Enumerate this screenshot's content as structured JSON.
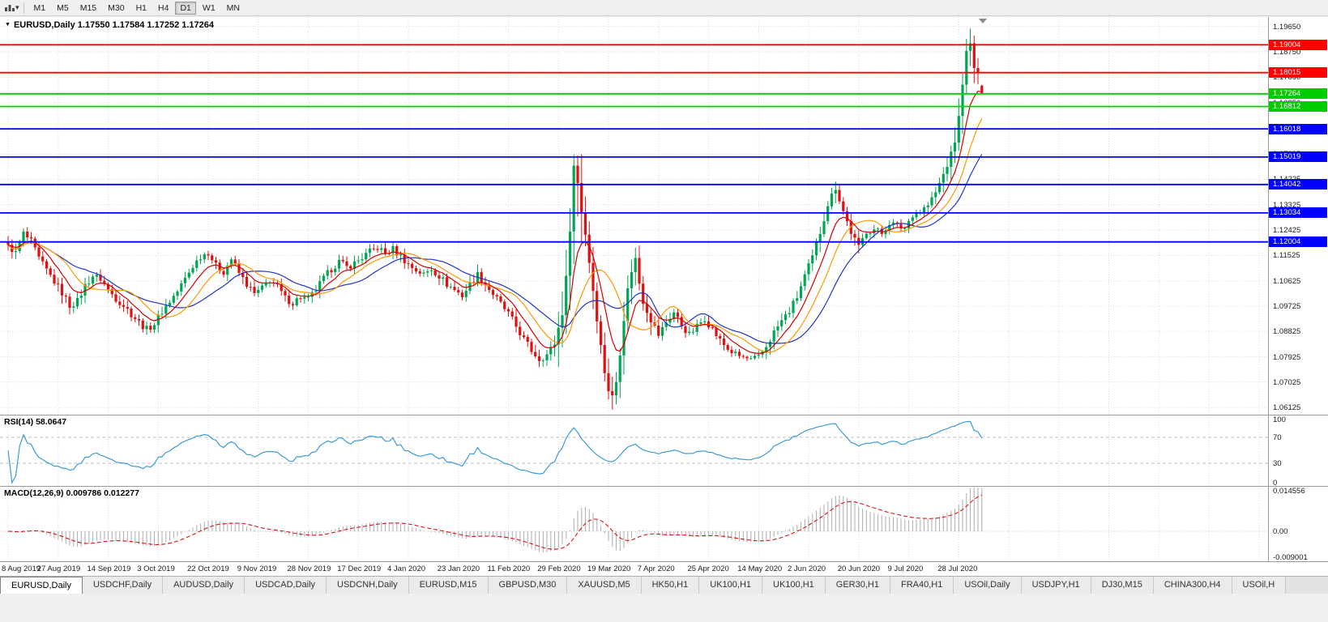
{
  "toolbar": {
    "timeframes": [
      "M1",
      "M5",
      "M15",
      "M30",
      "H1",
      "H4",
      "D1",
      "W1",
      "MN"
    ],
    "active_timeframe": "D1"
  },
  "main_chart": {
    "expander_icon": "▼",
    "symbol": "EURUSD,Daily",
    "ohlc": "1.17550 1.17584 1.17252 1.17264",
    "price_axis_labels": [
      "1.19650",
      "1.18750",
      "1.17850",
      "1.16950",
      "1.16050",
      "1.15125",
      "1.14225",
      "1.13325",
      "1.12425",
      "1.11525",
      "1.10625",
      "1.09725",
      "1.08825",
      "1.07925",
      "1.07025",
      "1.06125"
    ],
    "levels": [
      {
        "price": 1.19004,
        "label": "1.19004",
        "color": "#FF0000"
      },
      {
        "price": 1.18015,
        "label": "1.18015",
        "color": "#FF0000"
      },
      {
        "price": 1.17264,
        "label": "1.17264",
        "color": "#00CC00"
      },
      {
        "price": 1.16812,
        "label": "1.16812",
        "color": "#00CC00"
      },
      {
        "price": 1.16018,
        "label": "1.16018",
        "color": "#0000FF"
      },
      {
        "price": 1.15019,
        "label": "1.15019",
        "color": "#0000FF"
      },
      {
        "price": 1.14042,
        "label": "1.14042",
        "color": "#0000FF"
      },
      {
        "price": 1.13034,
        "label": "1.13034",
        "color": "#0000FF"
      },
      {
        "price": 1.12004,
        "label": "1.12004",
        "color": "#0000FF"
      }
    ]
  },
  "rsi": {
    "label": "RSI(14) 58.0647",
    "value": 58.0647,
    "axis_labels": [
      {
        "value": 100,
        "label": "100"
      },
      {
        "value": 70,
        "label": "70"
      },
      {
        "value": 30,
        "label": "30"
      },
      {
        "value": 0,
        "label": "0"
      }
    ],
    "level_lines": [
      70,
      30
    ]
  },
  "macd": {
    "label": "MACD(12,26,9) 0.009786 0.012277",
    "values": [
      0.009786,
      0.012277
    ],
    "axis_labels": [
      {
        "value": 0.014556,
        "label": "0.014556"
      },
      {
        "value": 0,
        "label": "0.00"
      },
      {
        "value": -0.009001,
        "label": "-0.009001"
      }
    ]
  },
  "date_axis": [
    "8 Aug 2019",
    "27 Aug 2019",
    "14 Sep 2019",
    "3 Oct 2019",
    "22 Oct 2019",
    "9 Nov 2019",
    "28 Nov 2019",
    "17 Dec 2019",
    "4 Jan 2020",
    "23 Jan 2020",
    "11 Feb 2020",
    "29 Feb 2020",
    "19 Mar 2020",
    "7 Apr 2020",
    "25 Apr 2020",
    "14 May 2020",
    "2 Jun 2020",
    "20 Jun 2020",
    "9 Jul 2020",
    "28 Jul 2020"
  ],
  "tabs": [
    "EURUSD,Daily",
    "USDCHF,Daily",
    "AUDUSD,Daily",
    "USDCAD,Daily",
    "USDCNH,Daily",
    "EURUSD,M15",
    "GBPUSD,M30",
    "XAUUSD,M5",
    "HK50,H1",
    "UK100,H1",
    "UK100,H1",
    "GER30,H1",
    "FRA40,H1",
    "USOil,Daily",
    "USDJPY,H1",
    "DJ30,M15",
    "CHINA300,H4",
    "USOil,H"
  ],
  "active_tab": "EURUSD,Daily",
  "chart_data": {
    "type": "candlestick",
    "symbol": "EURUSD",
    "timeframe": "Daily",
    "bars": 254,
    "bar_spacing_px": 4.75,
    "price_min": 1.0587,
    "price_max": 1.1999,
    "close_anchors": [
      [
        0,
        1.119
      ],
      [
        2,
        1.116
      ],
      [
        4,
        1.123
      ],
      [
        6,
        1.12
      ],
      [
        8,
        1.114
      ],
      [
        10,
        1.11
      ],
      [
        12,
        1.106
      ],
      [
        14,
        1.102
      ],
      [
        16,
        1.0975
      ],
      [
        18,
        1.099
      ],
      [
        20,
        1.1045
      ],
      [
        22,
        1.108
      ],
      [
        24,
        1.107
      ],
      [
        26,
        1.103
      ],
      [
        28,
        1.1
      ],
      [
        30,
        1.0975
      ],
      [
        32,
        1.0945
      ],
      [
        34,
        1.0915
      ],
      [
        36,
        1.089
      ],
      [
        38,
        1.091
      ],
      [
        40,
        1.0955
      ],
      [
        42,
        1.099
      ],
      [
        44,
        1.1025
      ],
      [
        46,
        1.107
      ],
      [
        48,
        1.1115
      ],
      [
        50,
        1.115
      ],
      [
        52,
        1.1165
      ],
      [
        54,
        1.1115
      ],
      [
        56,
        1.1095
      ],
      [
        58,
        1.114
      ],
      [
        60,
        1.109
      ],
      [
        62,
        1.105
      ],
      [
        64,
        1.1015
      ],
      [
        66,
        1.1035
      ],
      [
        68,
        1.1065
      ],
      [
        70,
        1.104
      ],
      [
        72,
        1.1
      ],
      [
        74,
        1.0985
      ],
      [
        76,
        1.1005
      ],
      [
        78,
        1.0995
      ],
      [
        80,
        1.103
      ],
      [
        82,
        1.107
      ],
      [
        84,
        1.1105
      ],
      [
        86,
        1.113
      ],
      [
        88,
        1.111
      ],
      [
        90,
        1.1125
      ],
      [
        92,
        1.1145
      ],
      [
        94,
        1.1165
      ],
      [
        96,
        1.118
      ],
      [
        98,
        1.116
      ],
      [
        100,
        1.1175
      ],
      [
        102,
        1.115
      ],
      [
        104,
        1.112
      ],
      [
        106,
        1.11
      ],
      [
        108,
        1.1085
      ],
      [
        110,
        1.1105
      ],
      [
        112,
        1.108
      ],
      [
        114,
        1.105
      ],
      [
        116,
        1.103
      ],
      [
        118,
        1.101
      ],
      [
        120,
        1.105
      ],
      [
        122,
        1.1085
      ],
      [
        124,
        1.105
      ],
      [
        126,
        1.1015
      ],
      [
        128,
        1.098
      ],
      [
        130,
        1.0945
      ],
      [
        132,
        1.09
      ],
      [
        134,
        1.0855
      ],
      [
        136,
        1.0815
      ],
      [
        138,
        1.0785
      ],
      [
        140,
        1.08
      ],
      [
        142,
        1.084
      ],
      [
        144,
        1.095
      ],
      [
        145,
        1.107
      ],
      [
        146,
        1.125
      ],
      [
        147,
        1.147
      ],
      [
        148,
        1.141
      ],
      [
        149,
        1.131
      ],
      [
        150,
        1.123
      ],
      [
        151,
        1.113
      ],
      [
        152,
        1.103
      ],
      [
        153,
        1.093
      ],
      [
        154,
        1.083
      ],
      [
        155,
        1.074
      ],
      [
        156,
        1.0675
      ],
      [
        157,
        1.065
      ],
      [
        158,
        1.0705
      ],
      [
        159,
        1.081
      ],
      [
        160,
        1.093
      ],
      [
        161,
        1.103
      ],
      [
        162,
        1.11
      ],
      [
        163,
        1.114
      ],
      [
        164,
        1.1055
      ],
      [
        165,
        1.099
      ],
      [
        167,
        1.0925
      ],
      [
        169,
        1.087
      ],
      [
        171,
        1.0915
      ],
      [
        173,
        1.095
      ],
      [
        175,
        1.0905
      ],
      [
        177,
        1.087
      ],
      [
        179,
        1.09
      ],
      [
        181,
        1.093
      ],
      [
        183,
        1.089
      ],
      [
        185,
        1.085
      ],
      [
        187,
        1.082
      ],
      [
        189,
        1.08
      ],
      [
        191,
        1.079
      ],
      [
        193,
        1.078
      ],
      [
        195,
        1.079
      ],
      [
        197,
        1.083
      ],
      [
        199,
        1.088
      ],
      [
        201,
        1.092
      ],
      [
        203,
        1.0955
      ],
      [
        205,
        1.1005
      ],
      [
        207,
        1.108
      ],
      [
        209,
        1.1145
      ],
      [
        211,
        1.1235
      ],
      [
        213,
        1.1335
      ],
      [
        215,
        1.1395
      ],
      [
        217,
        1.131
      ],
      [
        219,
        1.1235
      ],
      [
        221,
        1.118
      ],
      [
        223,
        1.124
      ],
      [
        225,
        1.1245
      ],
      [
        227,
        1.123
      ],
      [
        229,
        1.127
      ],
      [
        231,
        1.1255
      ],
      [
        233,
        1.125
      ],
      [
        235,
        1.13
      ],
      [
        237,
        1.131
      ],
      [
        239,
        1.133
      ],
      [
        241,
        1.1375
      ],
      [
        243,
        1.144
      ],
      [
        245,
        1.151
      ],
      [
        246,
        1.156
      ],
      [
        247,
        1.164
      ],
      [
        248,
        1.177
      ],
      [
        249,
        1.187
      ],
      [
        250,
        1.19
      ],
      [
        251,
        1.182
      ],
      [
        252,
        1.179
      ],
      [
        253,
        1.17264
      ]
    ],
    "last_bar": {
      "open": 1.1755,
      "high": 1.17584,
      "low": 1.17252,
      "close": 1.17264
    },
    "high_overrides": [
      [
        147,
        1.1497
      ],
      [
        249,
        1.1921
      ],
      [
        250,
        1.1958
      ],
      [
        251,
        1.1903
      ]
    ],
    "low_overrides": [
      [
        157,
        1.0636
      ]
    ],
    "moving_averages": [
      {
        "period": 21,
        "type": "sma",
        "color": "#2035C8",
        "name": "ma-slow-blue"
      },
      {
        "period": 13,
        "type": "sma",
        "color": "#FF9900",
        "name": "ma-medium-orange"
      },
      {
        "period": 8,
        "type": "ema",
        "color": "#D40000",
        "name": "ma-fast-red"
      }
    ],
    "rsi_period": 14,
    "macd_settings": {
      "fast": 12,
      "slow": 26,
      "signal": 9,
      "scale_min": -0.0096,
      "scale_max": 0.015
    },
    "colors": {
      "up": "#00A651",
      "down": "#E01010",
      "grid": "#DCDCDC",
      "rsi_line": "#3D9BD5",
      "rsi_level": "#C0C0C0",
      "macd_hist": "#B2B2B2",
      "macd_signal": "#E01010"
    }
  }
}
